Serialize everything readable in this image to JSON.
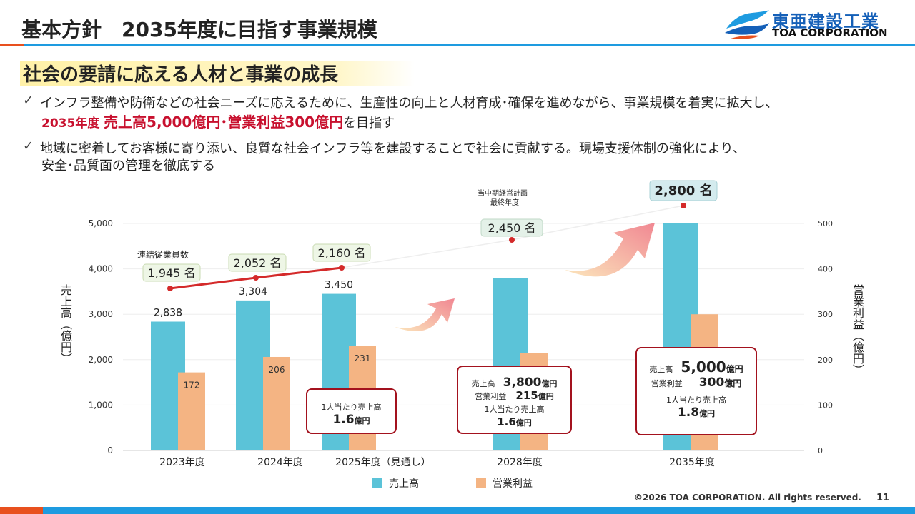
{
  "header": {
    "title": "基本方針　2035年度に目指す事業規模",
    "logo_jp": "東亜建設工業",
    "logo_en": "TOA CORPORATION"
  },
  "subtitle": "社会の要請に応える人材と事業の成長",
  "bullets": {
    "b1_line1": "インフラ整備や防衛などの社会ニーズに応えるために、生産性の向上と人材育成･確保を進めながら、事業規模を着実に拡大し、",
    "b1_line2_year": "2035年度",
    "b1_line2_target": "売上高5,000億円･営業利益300億円",
    "b1_line2_tail": "を目指す",
    "b2_line1": "地域に密着してお客様に寄り添い、良質な社会インフラ等を建設することで社会に貢献する。現場支援体制の強化により、",
    "b2_line2": "安全･品質面の管理を徹底する"
  },
  "chart_data": {
    "type": "bar",
    "categories": [
      "2023年度",
      "2024年度",
      "2025年度（見通し）",
      "2028年度",
      "2035年度"
    ],
    "series": [
      {
        "name": "売上高",
        "axis": "left",
        "color": "#5bc3d8",
        "values": [
          2838,
          3304,
          3450,
          3800,
          5000
        ]
      },
      {
        "name": "営業利益",
        "axis": "right",
        "color": "#f4b483",
        "values": [
          172,
          206,
          231,
          215,
          300
        ]
      }
    ],
    "employees": {
      "label": "連結従業員数",
      "values": [
        1945,
        2052,
        2160,
        2450,
        2800
      ],
      "labels": [
        "1,945 名",
        "2,052 名",
        "2,160 名",
        "2,450 名",
        "2,800 名"
      ],
      "line_color": "#d42a2a"
    },
    "sales_labels": [
      "2,838",
      "3,304",
      "3,450"
    ],
    "profit_labels": [
      "172",
      "206",
      "231"
    ],
    "left_axis": {
      "label": "売上高（億円）",
      "min": 0,
      "max": 5000,
      "ticks": [
        "0",
        "1,000",
        "2,000",
        "3,000",
        "4,000",
        "5,000"
      ]
    },
    "right_axis": {
      "label": "営業利益（億円）",
      "min": 0,
      "max": 500,
      "ticks": [
        "0",
        "100",
        "200",
        "300",
        "400",
        "500"
      ]
    },
    "plan_note": [
      "当中期経営計画",
      "最終年度"
    ],
    "legend": [
      "売上高",
      "営業利益"
    ]
  },
  "callouts": {
    "c2025": {
      "label": "1人当たり売上高",
      "value": "1.6",
      "unit": "億円"
    },
    "c2028": {
      "sales_label": "売上高",
      "sales_value": "3,800",
      "profit_label": "営業利益",
      "profit_value": "215",
      "unit": "億円",
      "per_label": "1人当たり売上高",
      "per_value": "1.6"
    },
    "c2035": {
      "sales_label": "売上高",
      "sales_value": "5,000",
      "profit_label": "営業利益",
      "profit_value": "300",
      "unit": "億円",
      "per_label": "1人当たり売上高",
      "per_value": "1.8"
    }
  },
  "footer": {
    "copyright": "©2026 TOA CORPORATION. All rights reserved.",
    "page": "11"
  },
  "colors": {
    "accent_blue": "#1e9be0",
    "accent_orange": "#e8501e",
    "callout_border": "#a3121e",
    "target_red": "#c8102e"
  }
}
